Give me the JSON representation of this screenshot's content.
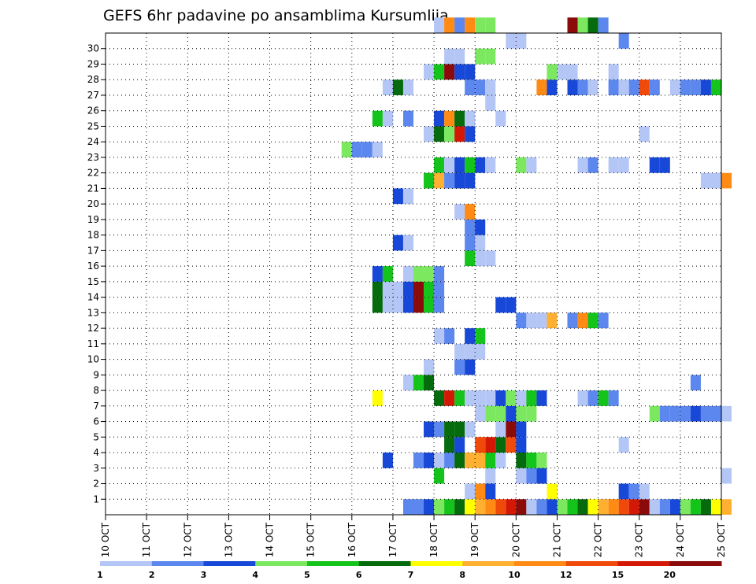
{
  "chart_data": {
    "type": "heatmap",
    "title": "GEFS 6hr padavine po ansamblima Kursumlija",
    "xlabel": "",
    "ylabel": "",
    "x_tick_labels": [
      "10 OCT",
      "11 OCT",
      "12 OCT",
      "13 OCT",
      "14 OCT",
      "15 OCT",
      "16 OCT",
      "17 OCT",
      "18 OCT",
      "19 OCT",
      "20 OCT",
      "21 OCT",
      "22 OCT",
      "23 OCT",
      "24 OCT",
      "25 OCT"
    ],
    "y_tick_labels": [
      "1",
      "2",
      "3",
      "4",
      "5",
      "6",
      "7",
      "8",
      "9",
      "10",
      "11",
      "12",
      "13",
      "14",
      "15",
      "16",
      "17",
      "18",
      "19",
      "20",
      "21",
      "22",
      "23",
      "24",
      "25",
      "26",
      "27",
      "28",
      "29",
      "30"
    ],
    "ylim": [
      0,
      30
    ],
    "x_steps_per_day": 4,
    "grid": true,
    "legend": {
      "placement": "bottom",
      "labels": [
        "1",
        "2",
        "3",
        "4",
        "5",
        "6",
        "7",
        "8",
        "10",
        "12",
        "15",
        "20"
      ],
      "colors": [
        "#b4c6f5",
        "#5b87ef",
        "#1848d8",
        "#7ce860",
        "#14c41a",
        "#056b0d",
        "#ffff00",
        "#ffb030",
        "#ff8a14",
        "#f04a0a",
        "#d41806",
        "#8b0a0a"
      ]
    },
    "cells": [
      [
        0,
        29,
        2
      ],
      [
        0,
        30,
        2
      ],
      [
        0,
        31,
        3
      ],
      [
        0,
        32,
        4
      ],
      [
        0,
        33,
        5
      ],
      [
        0,
        34,
        6
      ],
      [
        0,
        35,
        7
      ],
      [
        0,
        36,
        8
      ],
      [
        0,
        37,
        9
      ],
      [
        0,
        38,
        10
      ],
      [
        0,
        39,
        11
      ],
      [
        0,
        40,
        12
      ],
      [
        0,
        41,
        1
      ],
      [
        0,
        42,
        2
      ],
      [
        0,
        43,
        3
      ],
      [
        0,
        44,
        4
      ],
      [
        0,
        45,
        5
      ],
      [
        0,
        46,
        6
      ],
      [
        0,
        47,
        7
      ],
      [
        0,
        48,
        8
      ],
      [
        0,
        49,
        9
      ],
      [
        0,
        50,
        10
      ],
      [
        0,
        51,
        11
      ],
      [
        0,
        52,
        12
      ],
      [
        0,
        53,
        1
      ],
      [
        0,
        54,
        2
      ],
      [
        0,
        55,
        3
      ],
      [
        0,
        56,
        4
      ],
      [
        0,
        57,
        5
      ],
      [
        0,
        58,
        6
      ],
      [
        0,
        59,
        7
      ],
      [
        0,
        60,
        8
      ],
      [
        1,
        35,
        1
      ],
      [
        1,
        36,
        9
      ],
      [
        1,
        37,
        3
      ],
      [
        1,
        43,
        7
      ],
      [
        1,
        50,
        3
      ],
      [
        1,
        51,
        2
      ],
      [
        1,
        52,
        1
      ],
      [
        2,
        32,
        5
      ],
      [
        2,
        37,
        1
      ],
      [
        2,
        40,
        1
      ],
      [
        2,
        41,
        2
      ],
      [
        2,
        42,
        3
      ],
      [
        2,
        60,
        1
      ],
      [
        3,
        27,
        3
      ],
      [
        3,
        30,
        2
      ],
      [
        3,
        31,
        3
      ],
      [
        3,
        32,
        1
      ],
      [
        3,
        33,
        2
      ],
      [
        3,
        34,
        6
      ],
      [
        3,
        35,
        8
      ],
      [
        3,
        36,
        8
      ],
      [
        3,
        37,
        5
      ],
      [
        3,
        38,
        1
      ],
      [
        3,
        40,
        6
      ],
      [
        3,
        41,
        5
      ],
      [
        3,
        42,
        4
      ],
      [
        4,
        33,
        6
      ],
      [
        4,
        34,
        3
      ],
      [
        4,
        36,
        10
      ],
      [
        4,
        37,
        11
      ],
      [
        4,
        38,
        6
      ],
      [
        4,
        39,
        10
      ],
      [
        4,
        40,
        3
      ],
      [
        4,
        50,
        1
      ],
      [
        5,
        31,
        3
      ],
      [
        5,
        32,
        2
      ],
      [
        5,
        33,
        6
      ],
      [
        5,
        34,
        6
      ],
      [
        5,
        35,
        1
      ],
      [
        5,
        38,
        1
      ],
      [
        5,
        39,
        12
      ],
      [
        5,
        40,
        3
      ],
      [
        6,
        36,
        1
      ],
      [
        6,
        37,
        4
      ],
      [
        6,
        38,
        4
      ],
      [
        6,
        39,
        3
      ],
      [
        6,
        40,
        4
      ],
      [
        6,
        41,
        4
      ],
      [
        6,
        53,
        4
      ],
      [
        6,
        54,
        2
      ],
      [
        6,
        55,
        2
      ],
      [
        6,
        56,
        2
      ],
      [
        6,
        57,
        3
      ],
      [
        6,
        58,
        2
      ],
      [
        6,
        59,
        2
      ],
      [
        6,
        60,
        1
      ],
      [
        7,
        26,
        7
      ],
      [
        7,
        32,
        6
      ],
      [
        7,
        33,
        11
      ],
      [
        7,
        34,
        5
      ],
      [
        7,
        35,
        1
      ],
      [
        7,
        36,
        1
      ],
      [
        7,
        37,
        1
      ],
      [
        7,
        38,
        3
      ],
      [
        7,
        39,
        4
      ],
      [
        7,
        40,
        1
      ],
      [
        7,
        41,
        5
      ],
      [
        7,
        42,
        3
      ],
      [
        7,
        46,
        1
      ],
      [
        7,
        47,
        2
      ],
      [
        7,
        48,
        5
      ],
      [
        7,
        49,
        2
      ],
      [
        8,
        29,
        1
      ],
      [
        8,
        30,
        5
      ],
      [
        8,
        31,
        6
      ],
      [
        8,
        57,
        2
      ],
      [
        9,
        31,
        1
      ],
      [
        9,
        34,
        2
      ],
      [
        9,
        35,
        3
      ],
      [
        10,
        34,
        1
      ],
      [
        10,
        35,
        1
      ],
      [
        10,
        36,
        1
      ],
      [
        11,
        32,
        1
      ],
      [
        11,
        33,
        2
      ],
      [
        11,
        35,
        3
      ],
      [
        11,
        36,
        5
      ],
      [
        12,
        40,
        2
      ],
      [
        12,
        41,
        1
      ],
      [
        12,
        42,
        1
      ],
      [
        12,
        43,
        8
      ],
      [
        12,
        45,
        2
      ],
      [
        12,
        46,
        9
      ],
      [
        12,
        47,
        5
      ],
      [
        12,
        48,
        2
      ],
      [
        13,
        26,
        6
      ],
      [
        13,
        27,
        1
      ],
      [
        13,
        28,
        1
      ],
      [
        13,
        29,
        3
      ],
      [
        13,
        30,
        12
      ],
      [
        13,
        31,
        5
      ],
      [
        13,
        32,
        2
      ],
      [
        13,
        38,
        3
      ],
      [
        13,
        39,
        3
      ],
      [
        14,
        26,
        6
      ],
      [
        14,
        27,
        1
      ],
      [
        14,
        28,
        1
      ],
      [
        14,
        29,
        3
      ],
      [
        14,
        30,
        12
      ],
      [
        14,
        31,
        5
      ],
      [
        14,
        32,
        2
      ],
      [
        15,
        26,
        3
      ],
      [
        15,
        27,
        5
      ],
      [
        15,
        29,
        1
      ],
      [
        15,
        30,
        4
      ],
      [
        15,
        31,
        4
      ],
      [
        15,
        32,
        2
      ],
      [
        16,
        35,
        5
      ],
      [
        16,
        36,
        1
      ],
      [
        16,
        37,
        1
      ],
      [
        17,
        28,
        3
      ],
      [
        17,
        29,
        1
      ],
      [
        17,
        35,
        2
      ],
      [
        17,
        36,
        1
      ],
      [
        18,
        35,
        2
      ],
      [
        18,
        36,
        3
      ],
      [
        19,
        34,
        1
      ],
      [
        19,
        35,
        9
      ],
      [
        20,
        28,
        3
      ],
      [
        20,
        29,
        1
      ],
      [
        21,
        31,
        5
      ],
      [
        21,
        32,
        8
      ],
      [
        21,
        33,
        2
      ],
      [
        21,
        34,
        3
      ],
      [
        21,
        35,
        3
      ],
      [
        21,
        58,
        1
      ],
      [
        21,
        59,
        1
      ],
      [
        21,
        60,
        9
      ],
      [
        22,
        32,
        5
      ],
      [
        22,
        33,
        1
      ],
      [
        22,
        34,
        3
      ],
      [
        22,
        35,
        5
      ],
      [
        22,
        36,
        3
      ],
      [
        22,
        37,
        1
      ],
      [
        22,
        40,
        4
      ],
      [
        22,
        41,
        1
      ],
      [
        22,
        46,
        1
      ],
      [
        22,
        47,
        2
      ],
      [
        22,
        49,
        1
      ],
      [
        22,
        50,
        1
      ],
      [
        22,
        53,
        3
      ],
      [
        22,
        54,
        3
      ],
      [
        23,
        23,
        4
      ],
      [
        23,
        24,
        2
      ],
      [
        23,
        25,
        2
      ],
      [
        23,
        26,
        1
      ],
      [
        24,
        31,
        1
      ],
      [
        24,
        32,
        6
      ],
      [
        24,
        33,
        4
      ],
      [
        24,
        34,
        11
      ],
      [
        24,
        35,
        3
      ],
      [
        24,
        52,
        1
      ],
      [
        25,
        26,
        5
      ],
      [
        25,
        27,
        1
      ],
      [
        25,
        29,
        2
      ],
      [
        25,
        32,
        3
      ],
      [
        25,
        33,
        9
      ],
      [
        25,
        34,
        6
      ],
      [
        25,
        35,
        1
      ],
      [
        25,
        38,
        1
      ],
      [
        26,
        37,
        1
      ],
      [
        27,
        27,
        1
      ],
      [
        27,
        28,
        6
      ],
      [
        27,
        29,
        1
      ],
      [
        27,
        35,
        2
      ],
      [
        27,
        36,
        2
      ],
      [
        27,
        37,
        1
      ],
      [
        27,
        42,
        9
      ],
      [
        27,
        43,
        3
      ],
      [
        27,
        45,
        3
      ],
      [
        27,
        46,
        2
      ],
      [
        27,
        47,
        1
      ],
      [
        27,
        49,
        2
      ],
      [
        27,
        50,
        1
      ],
      [
        27,
        51,
        2
      ],
      [
        27,
        52,
        10
      ],
      [
        27,
        53,
        2
      ],
      [
        27,
        55,
        1
      ],
      [
        27,
        56,
        2
      ],
      [
        27,
        57,
        2
      ],
      [
        27,
        58,
        3
      ],
      [
        27,
        59,
        5
      ],
      [
        28,
        31,
        1
      ],
      [
        28,
        32,
        5
      ],
      [
        28,
        33,
        12
      ],
      [
        28,
        34,
        3
      ],
      [
        28,
        35,
        3
      ],
      [
        28,
        43,
        4
      ],
      [
        28,
        44,
        1
      ],
      [
        28,
        45,
        1
      ],
      [
        28,
        49,
        1
      ],
      [
        29,
        33,
        1
      ],
      [
        29,
        34,
        1
      ],
      [
        29,
        36,
        4
      ],
      [
        29,
        37,
        4
      ],
      [
        30,
        39,
        1
      ],
      [
        30,
        40,
        1
      ],
      [
        30,
        50,
        2
      ],
      [
        31,
        32,
        1
      ],
      [
        31,
        33,
        9
      ],
      [
        31,
        34,
        2
      ],
      [
        31,
        35,
        9
      ],
      [
        31,
        36,
        4
      ],
      [
        31,
        37,
        4
      ],
      [
        31,
        45,
        12
      ],
      [
        31,
        46,
        4
      ],
      [
        31,
        47,
        6
      ],
      [
        31,
        48,
        2
      ]
    ]
  }
}
